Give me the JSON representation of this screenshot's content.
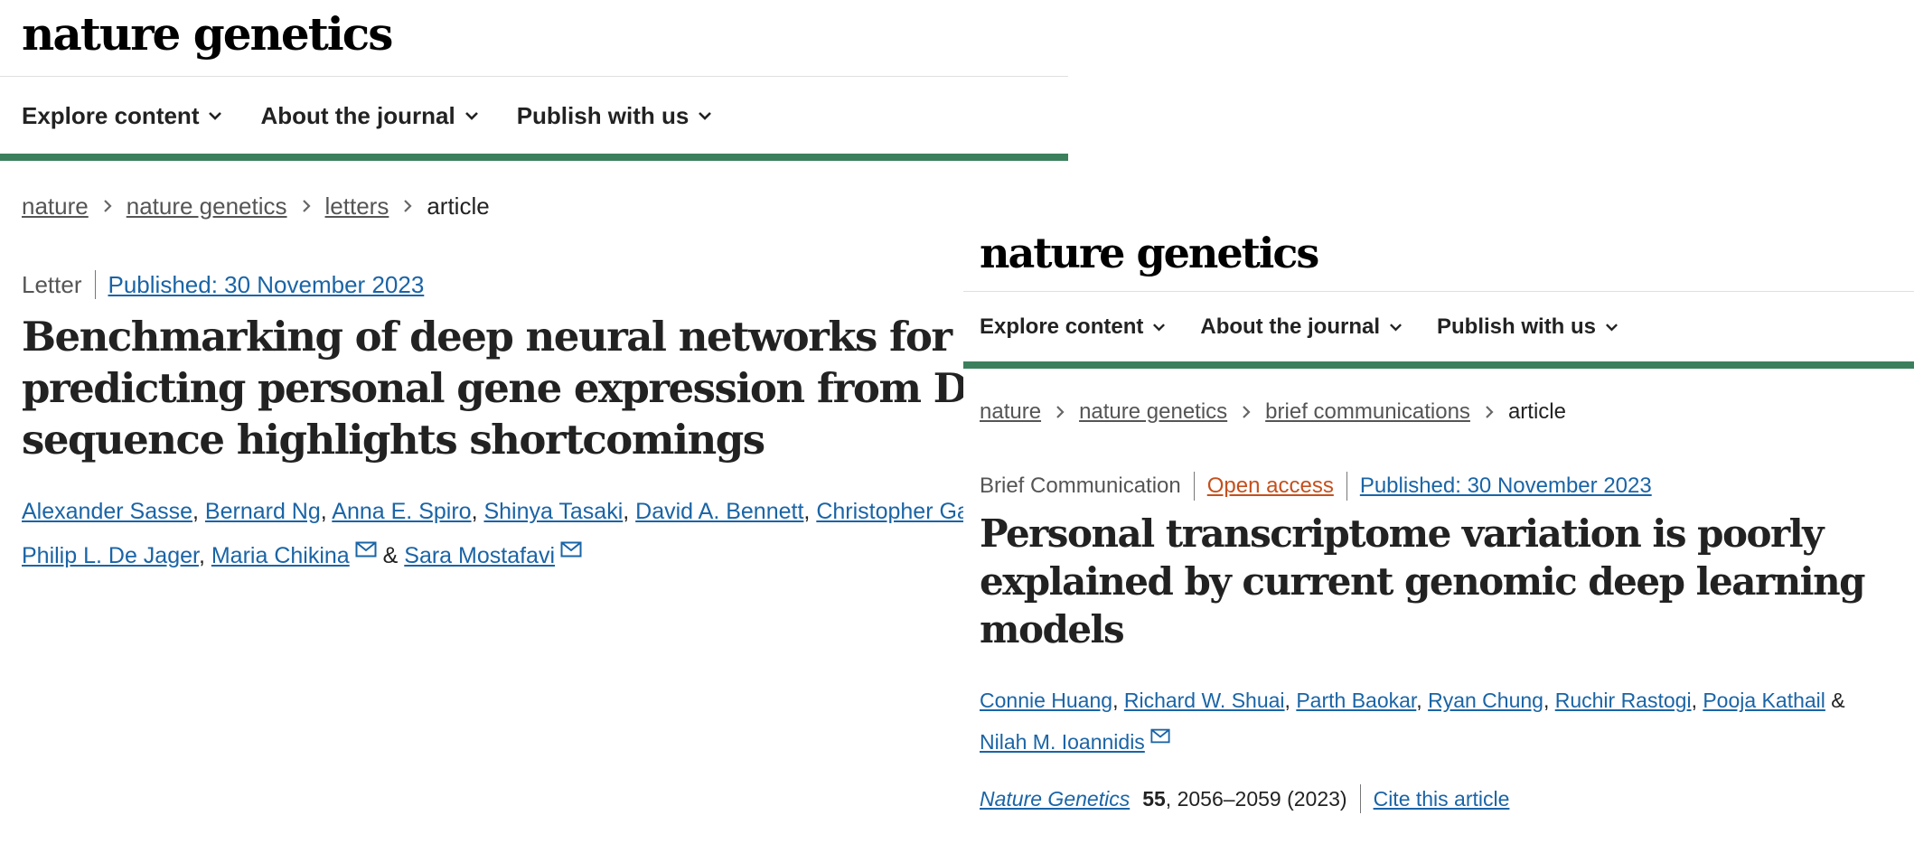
{
  "left_page": {
    "logo": "nature genetics",
    "nav": [
      {
        "label": "Explore content"
      },
      {
        "label": "About the journal"
      },
      {
        "label": "Publish with us"
      }
    ],
    "breadcrumb": [
      "nature",
      "nature genetics",
      "letters",
      "article"
    ],
    "article_type": "Letter",
    "published": "Published: 30 November 2023",
    "title": "Benchmarking of deep neural networks for predicting personal gene expression from DNA sequence highlights shortcomings",
    "authors": [
      {
        "name": "Alexander Sasse"
      },
      {
        "name": "Bernard Ng"
      },
      {
        "name": "Anna E. Spiro"
      },
      {
        "name": "Shinya Tasaki"
      },
      {
        "name": "David A. Bennett"
      },
      {
        "name": "Christopher Gaiteri"
      },
      {
        "name": "Philip L. De Jager"
      },
      {
        "name": "Maria Chikina"
      },
      {
        "name": "Sara Mostafavi"
      }
    ],
    "separator_comma": ", ",
    "separator_and": " & "
  },
  "right_page": {
    "logo": "nature genetics",
    "nav": [
      {
        "label": "Explore content"
      },
      {
        "label": "About the journal"
      },
      {
        "label": "Publish with us"
      }
    ],
    "breadcrumb": [
      "nature",
      "nature genetics",
      "brief communications",
      "article"
    ],
    "article_type": "Brief Communication",
    "open_access": "Open access",
    "published": "Published: 30 November 2023",
    "title": "Personal transcriptome variation is poorly explained by current genomic deep learning models",
    "authors": [
      {
        "name": "Connie Huang"
      },
      {
        "name": "Richard W. Shuai"
      },
      {
        "name": "Parth Baokar"
      },
      {
        "name": "Ryan Chung"
      },
      {
        "name": "Ruchir Rastogi"
      },
      {
        "name": "Pooja Kathail"
      },
      {
        "name": "Nilah M. Ioannidis"
      }
    ],
    "separator_comma": ", ",
    "separator_and": " & ",
    "citation": {
      "journal": "Nature Genetics",
      "volume": "55",
      "pages_year": ", 2056–2059 (2023)",
      "cite_label": "Cite this article"
    }
  },
  "colors": {
    "accent_green": "#3c7f5d",
    "link_blue": "#1a64a6",
    "open_access_orange": "#c4501d",
    "text": "#222222",
    "muted": "#555555"
  },
  "icons": {
    "nav_chevron": "chevron-down-icon",
    "breadcrumb_separator": "chevron-right-icon",
    "author_email": "mail-icon"
  }
}
